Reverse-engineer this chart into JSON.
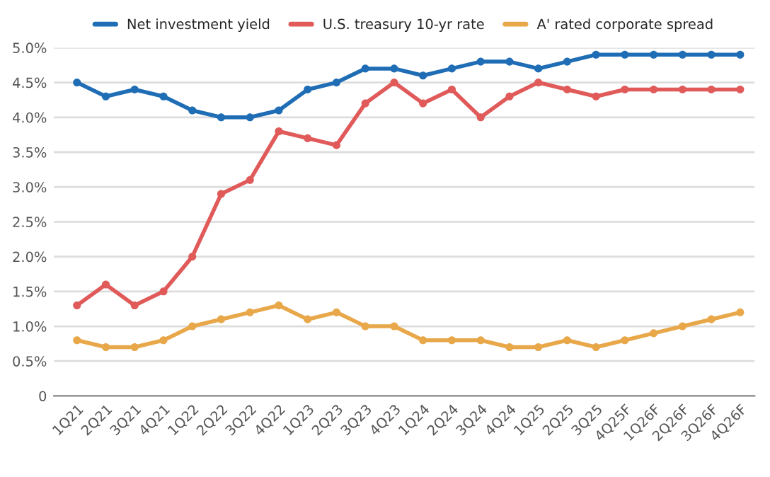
{
  "chart_data": {
    "type": "line",
    "categories": [
      "1Q21",
      "2Q21",
      "3Q21",
      "4Q21",
      "1Q22",
      "2Q22",
      "3Q22",
      "4Q22",
      "1Q23",
      "2Q23",
      "3Q23",
      "4Q23",
      "1Q24",
      "2Q24",
      "3Q24",
      "4Q24",
      "1Q25",
      "2Q25",
      "3Q25",
      "4Q25F",
      "1Q26F",
      "2Q26F",
      "3Q26F",
      "4Q26F"
    ],
    "series": [
      {
        "name": "Net investment yield",
        "color": "#1f6db5",
        "values": [
          4.5,
          4.3,
          4.4,
          4.3,
          4.1,
          4.0,
          4.0,
          4.1,
          4.4,
          4.5,
          4.7,
          4.7,
          4.6,
          4.7,
          4.8,
          4.8,
          4.7,
          4.8,
          4.9,
          4.9,
          4.9,
          4.9,
          4.9,
          4.9
        ]
      },
      {
        "name": "U.S. treasury 10-yr rate",
        "color": "#e05a5a",
        "values": [
          1.3,
          1.6,
          1.3,
          1.5,
          2.0,
          2.9,
          3.1,
          3.8,
          3.7,
          3.6,
          4.2,
          4.5,
          4.2,
          4.4,
          4.0,
          4.3,
          4.5,
          4.4,
          4.3,
          4.4,
          4.4,
          4.4,
          4.4,
          4.4
        ]
      },
      {
        "name": "A' rated corporate spread",
        "color": "#e8a84a",
        "values": [
          0.8,
          0.7,
          0.7,
          0.8,
          1.0,
          1.1,
          1.2,
          1.3,
          1.1,
          1.2,
          1.0,
          1.0,
          0.8,
          0.8,
          0.8,
          0.7,
          0.7,
          0.8,
          0.7,
          0.8,
          0.9,
          1.0,
          1.1,
          1.2
        ]
      }
    ],
    "ylim": [
      0,
      5.0
    ],
    "yticks": [
      {
        "value": 0,
        "label": "0"
      },
      {
        "value": 0.5,
        "label": "0.5%"
      },
      {
        "value": 1.0,
        "label": "1.0%"
      },
      {
        "value": 1.5,
        "label": "1.5%"
      },
      {
        "value": 2.0,
        "label": "2.0%"
      },
      {
        "value": 2.5,
        "label": "2.5%"
      },
      {
        "value": 3.0,
        "label": "3.0%"
      },
      {
        "value": 3.5,
        "label": "3.5%"
      },
      {
        "value": 4.0,
        "label": "4.0%"
      },
      {
        "value": 4.5,
        "label": "4.5%"
      },
      {
        "value": 5.0,
        "label": "5.0%"
      }
    ],
    "grid": "y",
    "legend": "top",
    "marker": "circle",
    "line_style": "solid"
  }
}
